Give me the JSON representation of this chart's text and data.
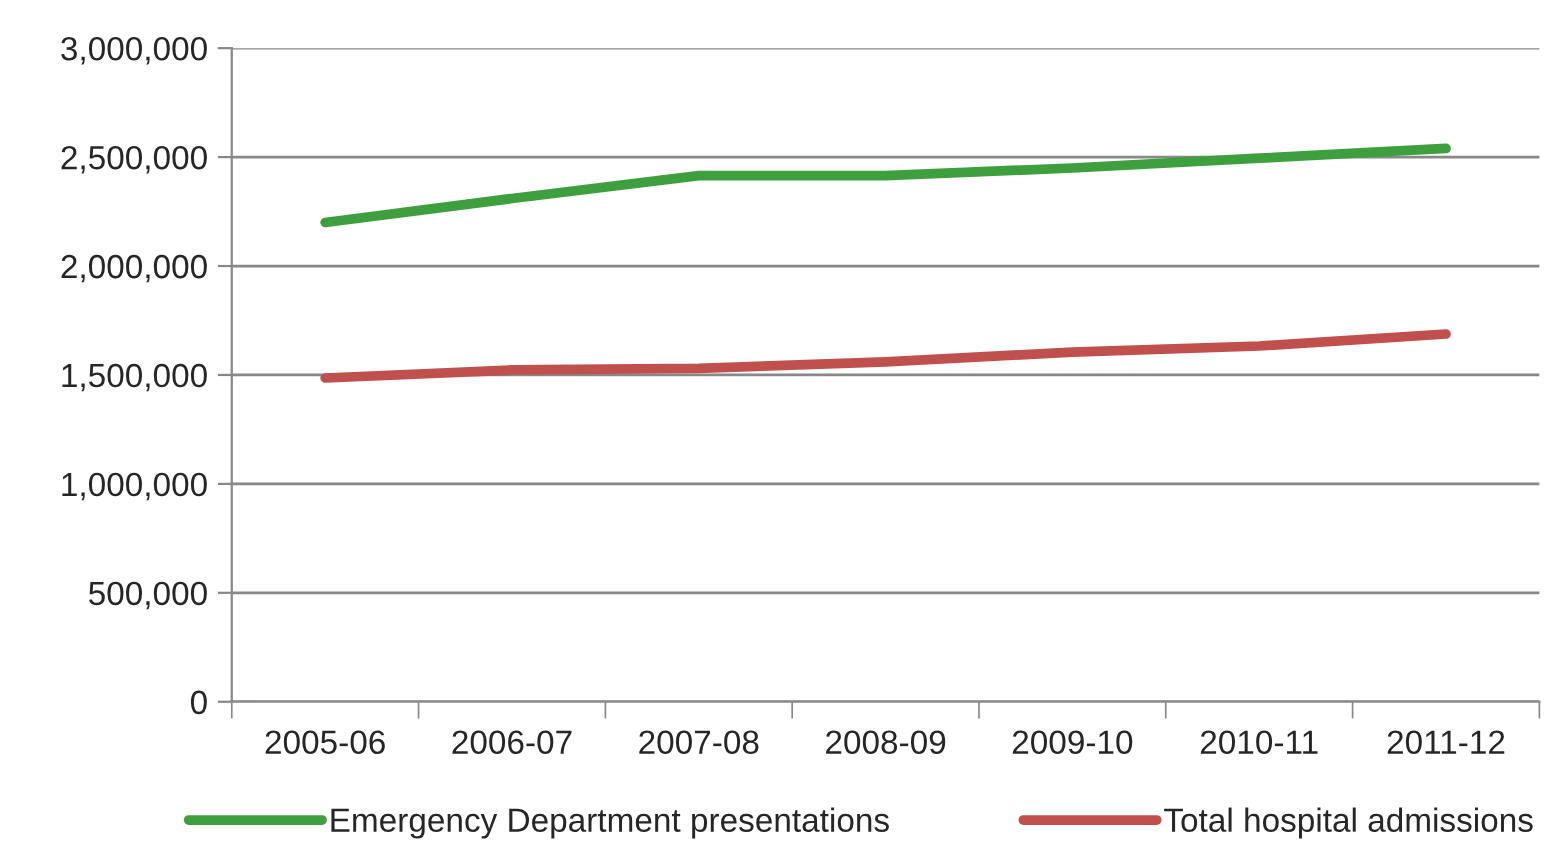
{
  "chart_data": {
    "type": "line",
    "categories": [
      "2005-06",
      "2006-07",
      "2007-08",
      "2008-09",
      "2009-10",
      "2010-11",
      "2011-12"
    ],
    "series": [
      {
        "name": "Emergency Department presentations",
        "color": "#3e9f3e",
        "values": [
          2200000,
          2310000,
          2415000,
          2415000,
          2450000,
          2495000,
          2540000
        ]
      },
      {
        "name": "Total hospital admissions",
        "color": "#c0504d",
        "values": [
          1486000,
          1523000,
          1530000,
          1560000,
          1605000,
          1633000,
          1688000
        ]
      }
    ],
    "ylim": [
      0,
      3000000
    ],
    "yticks": [
      {
        "value": 0,
        "label": "0"
      },
      {
        "value": 500000,
        "label": "500,000"
      },
      {
        "value": 1000000,
        "label": "1,000,000"
      },
      {
        "value": 1500000,
        "label": "1,500,000"
      },
      {
        "value": 2000000,
        "label": "2,000,000"
      },
      {
        "value": 2500000,
        "label": "2,500,000"
      },
      {
        "value": 3000000,
        "label": "3,000,000"
      }
    ],
    "grid": "y",
    "legend": "bottom",
    "marker": "none",
    "line_style": "solid"
  }
}
